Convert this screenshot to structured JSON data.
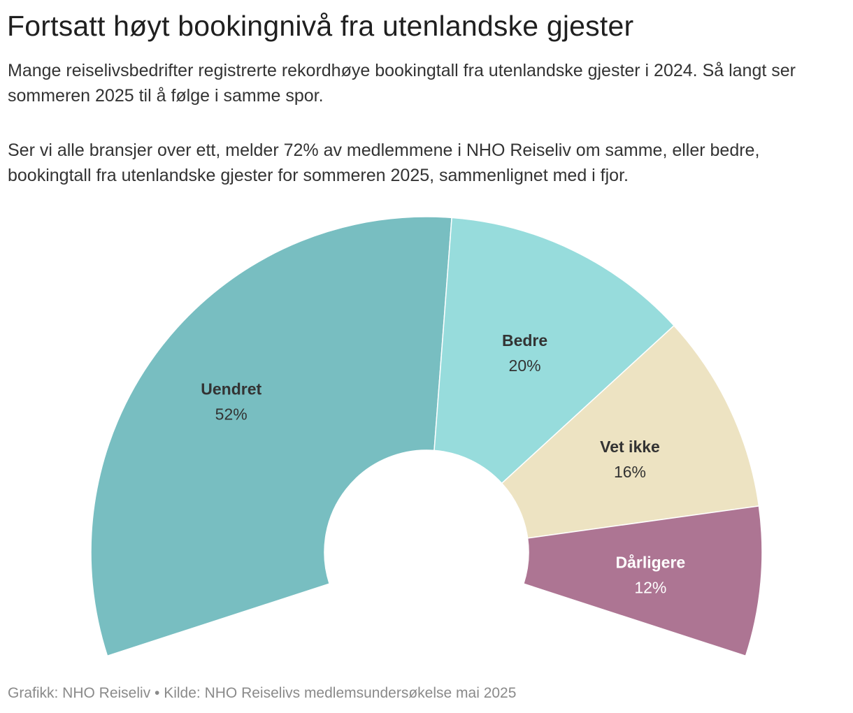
{
  "header": {
    "title": "Fortsatt høyt bookingnivå fra utenlandske gjester",
    "description_1": "Mange reiselivsbedrifter registrerte rekordhøye bookingtall fra utenlandske gjester i 2024. Så langt ser sommeren 2025 til å følge i samme spor.",
    "description_2": "Ser vi alle bransjer over ett, melder 72% av medlemmene i NHO Reiseliv om samme, eller bedre, bookingtall fra utenlandske gjester for sommeren 2025, sammenlignet med i fjor."
  },
  "chart_data": {
    "type": "pie",
    "variant": "semicircle-donut",
    "categories": [
      "Uendret",
      "Bedre",
      "Vet ikke",
      "Dårligere"
    ],
    "values": [
      52,
      20,
      16,
      12
    ],
    "value_labels": [
      "52%",
      "20%",
      "16%",
      "12%"
    ],
    "unit": "%",
    "colors": [
      "#78bec1",
      "#97dcdc",
      "#ede3c2",
      "#ad7593"
    ],
    "label_colors": [
      "#333333",
      "#333333",
      "#333333",
      "#ffffff"
    ],
    "legend": "none"
  },
  "footer": {
    "credit": "Grafikk: NHO Reiseliv • Kilde: NHO Reiselivs medlemsundersøkelse mai 2025"
  }
}
